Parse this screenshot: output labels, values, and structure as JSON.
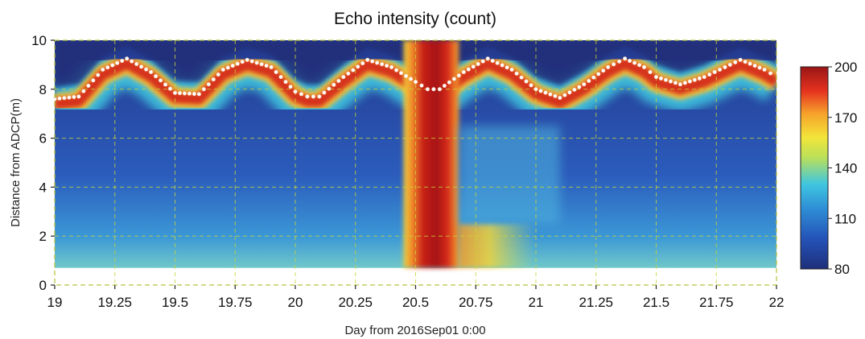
{
  "chart_data": {
    "type": "heatmap",
    "title": "Echo intensity (count)",
    "xlabel": "Day from 2016Sep01 0:00",
    "ylabel": "Distance from ADCP(m)",
    "xlim": [
      19,
      22
    ],
    "ylim": [
      0,
      10
    ],
    "x_ticks": [
      19,
      19.25,
      19.5,
      19.75,
      20,
      20.25,
      20.5,
      20.75,
      21,
      21.25,
      21.5,
      21.75,
      22
    ],
    "x_tick_labels": [
      "19",
      "19.25",
      "19.5",
      "19.75",
      "20",
      "20.25",
      "20.5",
      "20.75",
      "21",
      "21.25",
      "21.5",
      "21.75",
      "22"
    ],
    "y_ticks": [
      0,
      2,
      4,
      6,
      8,
      10
    ],
    "y_tick_labels": [
      "0",
      "2",
      "4",
      "6",
      "8",
      "10"
    ],
    "grid": true,
    "colorbar": {
      "range": [
        80,
        200
      ],
      "ticks": [
        80,
        110,
        140,
        170,
        200
      ],
      "tick_labels": [
        "80",
        "110",
        "140",
        "170",
        "200"
      ],
      "colormap": "jet"
    },
    "surface_series": {
      "marker": "white dots",
      "points": [
        [
          19.0,
          7.6
        ],
        [
          19.1,
          7.7
        ],
        [
          19.2,
          8.8
        ],
        [
          19.3,
          9.25
        ],
        [
          19.4,
          8.7
        ],
        [
          19.5,
          7.85
        ],
        [
          19.6,
          7.8
        ],
        [
          19.7,
          8.8
        ],
        [
          19.8,
          9.2
        ],
        [
          19.9,
          8.9
        ],
        [
          20.0,
          7.9
        ],
        [
          20.05,
          7.7
        ],
        [
          20.1,
          7.7
        ],
        [
          20.2,
          8.5
        ],
        [
          20.3,
          9.2
        ],
        [
          20.4,
          8.9
        ],
        [
          20.5,
          8.3
        ],
        [
          20.55,
          8.0
        ],
        [
          20.6,
          8.0
        ],
        [
          20.7,
          8.7
        ],
        [
          20.8,
          9.25
        ],
        [
          20.9,
          8.8
        ],
        [
          21.0,
          8.0
        ],
        [
          21.1,
          7.65
        ],
        [
          21.2,
          8.2
        ],
        [
          21.3,
          8.9
        ],
        [
          21.37,
          9.25
        ],
        [
          21.45,
          8.9
        ],
        [
          21.5,
          8.5
        ],
        [
          21.6,
          8.2
        ],
        [
          21.7,
          8.5
        ],
        [
          21.85,
          9.2
        ],
        [
          21.95,
          8.8
        ],
        [
          22.0,
          8.5
        ]
      ]
    },
    "features": [
      {
        "description": "high-intensity plume",
        "x_range": [
          20.45,
          20.68
        ],
        "y_range": [
          0.7,
          10
        ],
        "value": 200
      },
      {
        "description": "elevated near-bed intensity",
        "x_range": [
          20.68,
          21.0
        ],
        "y_range": [
          0.7,
          2.5
        ],
        "value": 160
      }
    ]
  }
}
